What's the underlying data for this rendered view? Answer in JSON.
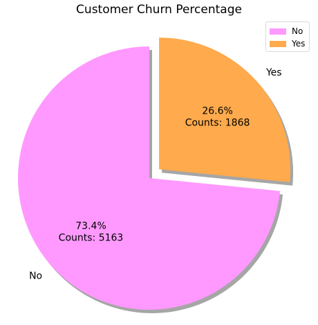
{
  "chart_data": {
    "type": "pie",
    "title": "Customer Churn Percentage",
    "categories": [
      "No",
      "Yes"
    ],
    "values": [
      5163,
      1868
    ],
    "percentages": [
      73.4,
      26.6
    ],
    "autopct_labels": [
      [
        "73.4%",
        "Counts: 5163"
      ],
      [
        "26.6%",
        "Counts: 1868"
      ]
    ],
    "colors": [
      "#ff99ff",
      "#ffaa4c"
    ],
    "explode": [
      0,
      0.1
    ],
    "shadow": true,
    "start_angle_deg": 90,
    "legend": {
      "placement": "top-right",
      "entries": [
        "No",
        "Yes"
      ]
    }
  }
}
